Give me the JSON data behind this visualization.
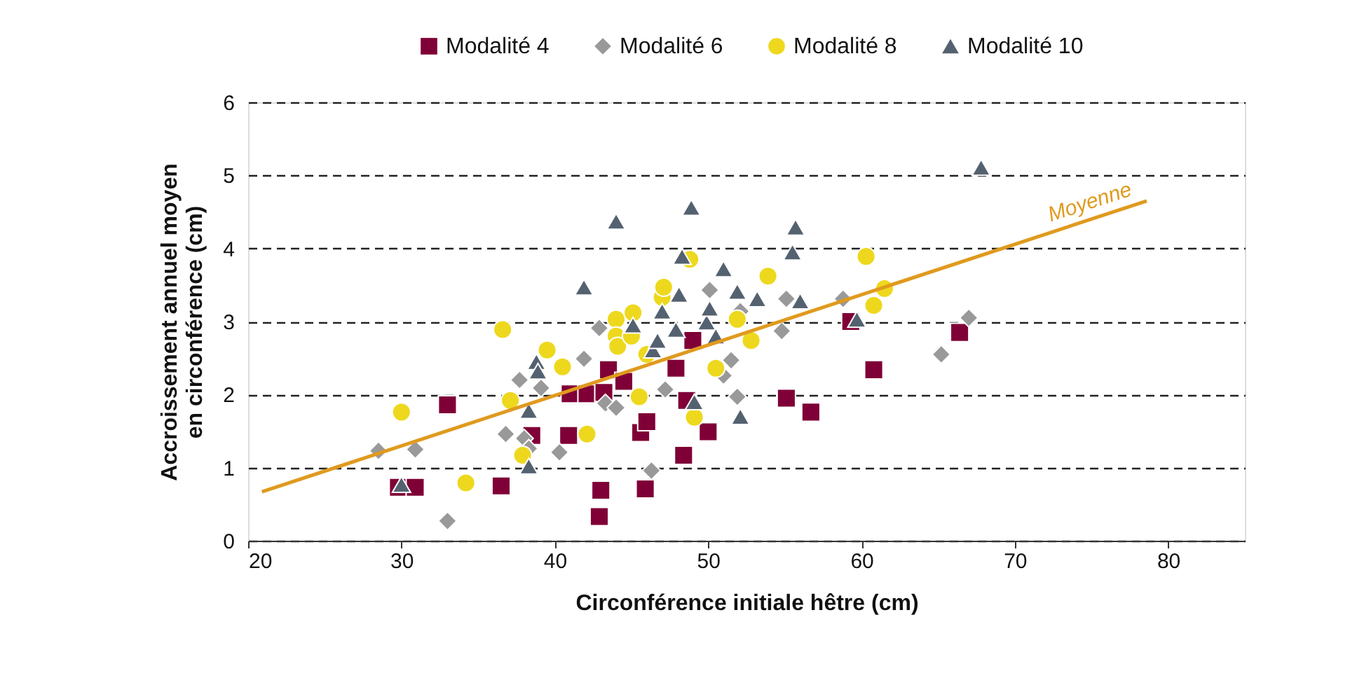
{
  "chart_data": {
    "type": "scatter",
    "xlabel": "Circonférence initiale hêtre (cm)",
    "ylabel": "Accroissement annuel moyen\nen circonférence (cm)",
    "xlim": [
      20,
      85
    ],
    "xticks": [
      20,
      30,
      40,
      50,
      60,
      70,
      80
    ],
    "ylim": [
      0,
      6
    ],
    "yticks": [
      0,
      1,
      2,
      3,
      4,
      5,
      6
    ],
    "grid": "y",
    "legend": "top right",
    "series": [
      {
        "name": "Modalité 4",
        "marker": "square",
        "color": "#7f0036",
        "x": [
          29.8,
          30.9,
          33.0,
          36.5,
          38.5,
          40.9,
          41.0,
          42.1,
          43.2,
          43.5,
          44.5,
          43.0,
          42.9,
          45.6,
          46.0,
          45.9,
          47.9,
          48.4,
          48.6,
          49.0,
          50.0,
          55.1,
          56.7,
          59.3,
          60.8,
          66.4
        ],
        "values": [
          0.73,
          0.73,
          1.86,
          0.75,
          1.44,
          1.44,
          2.01,
          2.01,
          2.03,
          2.34,
          2.18,
          0.69,
          0.33,
          1.48,
          1.63,
          0.71,
          2.36,
          1.17,
          1.92,
          2.74,
          1.49,
          1.95,
          1.76,
          3.0,
          2.34,
          2.85
        ]
      },
      {
        "name": "Modalité 6",
        "marker": "diamond",
        "color": "#999999",
        "x": [
          28.5,
          30.9,
          33.0,
          36.8,
          37.7,
          38.0,
          38.3,
          39.1,
          40.3,
          41.9,
          42.9,
          43.3,
          44.0,
          46.3,
          47.2,
          50.1,
          51.0,
          51.5,
          51.9,
          52.1,
          55.1,
          54.8,
          58.8,
          65.2,
          67.0
        ],
        "values": [
          1.23,
          1.25,
          0.27,
          1.46,
          2.2,
          1.4,
          1.26,
          2.09,
          1.21,
          2.49,
          2.91,
          1.88,
          1.82,
          0.96,
          2.07,
          3.43,
          2.26,
          2.47,
          1.97,
          3.14,
          3.31,
          2.87,
          3.31,
          2.55,
          3.05
        ]
      },
      {
        "name": "Modalité 8",
        "marker": "circle",
        "color": "#eed81e",
        "x": [
          30.0,
          34.2,
          36.6,
          37.1,
          37.9,
          39.5,
          40.5,
          42.1,
          44.0,
          44.0,
          44.1,
          45.1,
          45.0,
          45.5,
          46.0,
          47.0,
          47.1,
          48.8,
          49.1,
          50.5,
          51.9,
          52.8,
          53.9,
          60.3,
          60.8,
          61.5
        ],
        "values": [
          1.76,
          0.79,
          2.89,
          1.92,
          1.17,
          2.61,
          2.38,
          1.46,
          3.03,
          2.8,
          2.66,
          3.12,
          2.8,
          1.97,
          2.55,
          3.33,
          3.47,
          3.85,
          1.69,
          2.36,
          3.03,
          2.74,
          3.62,
          3.89,
          3.22,
          3.45
        ]
      },
      {
        "name": "Modalité 10",
        "marker": "triangle",
        "color": "#546170",
        "x": [
          30.0,
          38.3,
          38.3,
          38.8,
          38.9,
          41.9,
          44.0,
          45.1,
          46.4,
          46.7,
          47.0,
          47.9,
          48.1,
          48.3,
          48.9,
          49.1,
          49.9,
          50.1,
          50.5,
          51.0,
          51.9,
          52.1,
          53.2,
          55.5,
          55.7,
          56.0,
          59.7,
          67.8
        ],
        "values": [
          0.77,
          1.02,
          1.78,
          2.45,
          2.32,
          3.47,
          4.37,
          2.95,
          2.61,
          2.74,
          3.14,
          2.89,
          3.37,
          3.89,
          4.56,
          1.9,
          2.99,
          3.18,
          2.8,
          3.72,
          3.41,
          1.7,
          3.31,
          3.95,
          4.29,
          3.28,
          3.03,
          5.11
        ]
      },
      {
        "name": "Moyenne",
        "type": "line",
        "color": "#e09a1e",
        "line_style": "solid",
        "x": [
          20.9,
          78.6
        ],
        "values": [
          0.67,
          4.65
        ]
      }
    ]
  }
}
